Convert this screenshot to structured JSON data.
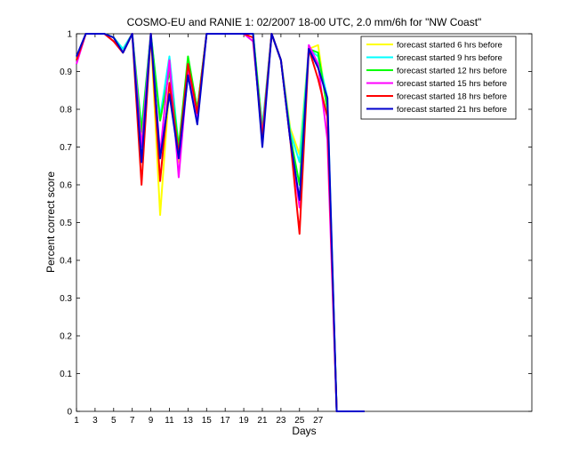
{
  "chart_data": {
    "type": "line",
    "title": "COSMO-EU and RANIE 1: 02/2007 18-00 UTC, 2.0 mm/6h for \"NW Coast\"",
    "xlabel": "Days",
    "ylabel": "Percent correct score",
    "xlim": [
      1,
      50
    ],
    "ylim": [
      0,
      1
    ],
    "xticks": [
      1,
      3,
      5,
      7,
      9,
      11,
      13,
      15,
      17,
      19,
      21,
      23,
      25,
      27
    ],
    "xtick_labels": [
      "1",
      "3",
      "5",
      "7",
      "9",
      "11",
      "13",
      "15",
      "17",
      "19",
      "21",
      "23",
      "25",
      "27"
    ],
    "yticks": [
      0,
      0.1,
      0.2,
      0.3,
      0.4,
      0.5,
      0.6,
      0.7,
      0.8,
      0.9,
      1
    ],
    "ytick_labels": [
      "0",
      "0.1",
      "0.2",
      "0.3",
      "0.4",
      "0.5",
      "0.6",
      "0.7",
      "0.8",
      "0.9",
      "1"
    ],
    "legend_position": "top-right",
    "grid": false,
    "x": [
      1,
      2,
      3,
      4,
      5,
      6,
      7,
      8,
      9,
      10,
      11,
      12,
      13,
      14,
      15,
      16,
      17,
      18,
      19,
      20,
      21,
      22,
      23,
      24,
      25,
      26,
      27,
      28,
      29,
      30,
      31,
      32
    ],
    "series": [
      {
        "name": "forecast started 6 hrs before",
        "color": "#ffff00",
        "values": [
          0.93,
          1,
          1,
          1,
          0.99,
          0.96,
          1,
          0.72,
          1,
          0.52,
          0.86,
          0.66,
          0.9,
          0.8,
          1,
          1,
          1,
          1,
          1,
          1,
          0.75,
          1,
          0.93,
          0.75,
          0.68,
          0.96,
          0.97,
          0.8,
          0,
          0,
          0,
          0
        ]
      },
      {
        "name": "forecast started 9 hrs before",
        "color": "#00ffff",
        "values": [
          0.93,
          1,
          1,
          1,
          0.99,
          0.96,
          1,
          0.75,
          1,
          0.78,
          0.94,
          0.7,
          0.91,
          0.8,
          1,
          1,
          1,
          1,
          1,
          1,
          0.75,
          1,
          0.93,
          0.74,
          0.66,
          0.96,
          0.94,
          0.83,
          0,
          0,
          0,
          0
        ]
      },
      {
        "name": "forecast started 12 hrs before",
        "color": "#00ff00",
        "values": [
          0.93,
          1,
          1,
          1,
          0.99,
          0.95,
          1,
          0.74,
          1,
          0.77,
          0.9,
          0.7,
          0.94,
          0.8,
          1,
          1,
          1,
          1,
          1,
          1,
          0.74,
          1,
          0.93,
          0.73,
          0.6,
          0.96,
          0.95,
          0.8,
          0,
          0,
          0,
          0
        ]
      },
      {
        "name": "forecast started 15 hrs before",
        "color": "#ff00ff",
        "values": [
          0.92,
          1,
          1,
          1,
          0.98,
          0.95,
          1,
          0.7,
          1,
          0.68,
          0.93,
          0.62,
          0.91,
          0.78,
          1,
          1,
          1,
          1,
          1,
          0.98,
          0.73,
          1,
          0.93,
          0.72,
          0.54,
          0.97,
          0.92,
          0.72,
          0,
          0,
          0,
          0
        ]
      },
      {
        "name": "forecast started 18 hrs before",
        "color": "#ff0000",
        "values": [
          0.93,
          1,
          1,
          1,
          0.98,
          0.95,
          1,
          0.6,
          1,
          0.61,
          0.87,
          0.68,
          0.92,
          0.79,
          1,
          1,
          1,
          1,
          1,
          0.99,
          0.72,
          1,
          0.93,
          0.72,
          0.47,
          0.96,
          0.88,
          0.78,
          0,
          0,
          0,
          0
        ]
      },
      {
        "name": "forecast started 21 hrs before",
        "color": "#0000cc",
        "values": [
          0.94,
          1,
          1,
          1,
          0.99,
          0.95,
          1,
          0.66,
          1,
          0.67,
          0.84,
          0.67,
          0.89,
          0.76,
          1,
          1,
          1,
          1,
          1,
          1,
          0.7,
          1,
          0.93,
          0.72,
          0.56,
          0.96,
          0.91,
          0.83,
          0,
          0,
          0,
          0
        ]
      }
    ]
  }
}
